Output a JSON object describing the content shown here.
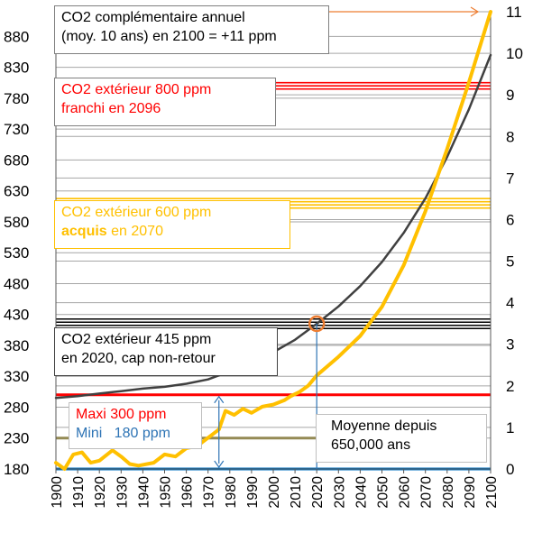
{
  "chart_data": {
    "type": "line",
    "x_ticks": [
      "1900",
      "1910",
      "1920",
      "1930",
      "1940",
      "1950",
      "1960",
      "1970",
      "1980",
      "1990",
      "2000",
      "2010",
      "2020",
      "2030",
      "2040",
      "2050",
      "2060",
      "2070",
      "2080",
      "2090",
      "2100"
    ],
    "y_left_ticks": [
      "180",
      "230",
      "280",
      "330",
      "380",
      "430",
      "480",
      "530",
      "580",
      "630",
      "680",
      "730",
      "780",
      "830",
      "880"
    ],
    "y_right_ticks": [
      "0",
      "1",
      "2",
      "3",
      "4",
      "5",
      "6",
      "7",
      "8",
      "9",
      "10",
      "11"
    ],
    "xlim": [
      1900,
      2100
    ],
    "ylim_left": [
      180,
      920
    ],
    "ylim_right": [
      0,
      11
    ],
    "series": [
      {
        "axis": "left",
        "color": "#404040",
        "points": [
          [
            1900,
            295
          ],
          [
            1910,
            298
          ],
          [
            1920,
            302
          ],
          [
            1930,
            306
          ],
          [
            1940,
            310
          ],
          [
            1950,
            313
          ],
          [
            1960,
            318
          ],
          [
            1970,
            325
          ],
          [
            1980,
            338
          ],
          [
            1990,
            352
          ],
          [
            2000,
            369
          ],
          [
            2010,
            389
          ],
          [
            2020,
            415
          ],
          [
            2030,
            443
          ],
          [
            2040,
            476
          ],
          [
            2050,
            515
          ],
          [
            2060,
            562
          ],
          [
            2070,
            618
          ],
          [
            2080,
            685
          ],
          [
            2090,
            762
          ],
          [
            2100,
            850
          ]
        ]
      },
      {
        "axis": "right",
        "color": "#FFC000",
        "points": [
          [
            1900,
            0.15
          ],
          [
            1904,
            0.0
          ],
          [
            1908,
            0.35
          ],
          [
            1912,
            0.4
          ],
          [
            1916,
            0.15
          ],
          [
            1920,
            0.2
          ],
          [
            1926,
            0.45
          ],
          [
            1930,
            0.3
          ],
          [
            1934,
            0.12
          ],
          [
            1938,
            0.08
          ],
          [
            1945,
            0.15
          ],
          [
            1950,
            0.35
          ],
          [
            1955,
            0.3
          ],
          [
            1960,
            0.5
          ],
          [
            1965,
            0.55
          ],
          [
            1970,
            0.75
          ],
          [
            1975,
            0.95
          ],
          [
            1978,
            1.4
          ],
          [
            1982,
            1.3
          ],
          [
            1986,
            1.45
          ],
          [
            1990,
            1.35
          ],
          [
            1995,
            1.5
          ],
          [
            2000,
            1.55
          ],
          [
            2005,
            1.65
          ],
          [
            2008,
            1.75
          ],
          [
            2012,
            1.85
          ],
          [
            2016,
            2.0
          ],
          [
            2020,
            2.25
          ],
          [
            2030,
            2.7
          ],
          [
            2040,
            3.2
          ],
          [
            2050,
            3.9
          ],
          [
            2060,
            4.9
          ],
          [
            2070,
            6.2
          ],
          [
            2080,
            7.7
          ],
          [
            2090,
            9.3
          ],
          [
            2100,
            11.0
          ]
        ]
      }
    ],
    "reference_lines": [
      {
        "value": 800,
        "color": "#FF0000",
        "count": 3
      },
      {
        "value": 610,
        "color": "#FFC000",
        "count": 4
      },
      {
        "value": 415,
        "color": "#000000",
        "count": 4
      },
      {
        "value": 300,
        "color": "#FF0000",
        "count": 1
      },
      {
        "value": 230,
        "color": "#948A54",
        "count": 1,
        "to_year": 2020
      },
      {
        "value": 180,
        "color": "#0070C0",
        "count": 1
      }
    ],
    "highlight_point": {
      "year": 2020,
      "value": 415
    },
    "range_arrow": {
      "year": 1975,
      "from": 180,
      "to": 300
    },
    "top_arrow_value_right": 11
  },
  "annotations": {
    "co2_annual": {
      "line1": "CO2 complémentaire annuel",
      "line2": "(moy. 10 ans) en 2100 = +11 ppm"
    },
    "co2_800": {
      "line1": "CO2 extérieur 800 ppm",
      "line2": "franchi en 2096",
      "color": "#FF0000"
    },
    "co2_600": {
      "line1": "CO2 extérieur 600 ppm",
      "line2_bold": "acquis",
      "line2_rest": " en 2070",
      "color": "#FFC000"
    },
    "co2_415": {
      "line1": "CO2 extérieur 415 ppm",
      "line2": "en 2020, cap non-retour"
    },
    "maxi": {
      "text": "Maxi 300 ppm",
      "color": "#FF0000"
    },
    "mini": {
      "text": "Mini   180 ppm",
      "color": "#2E74B5"
    },
    "moyenne": {
      "line1": "Moyenne depuis",
      "line2": "650,000 ans"
    }
  }
}
